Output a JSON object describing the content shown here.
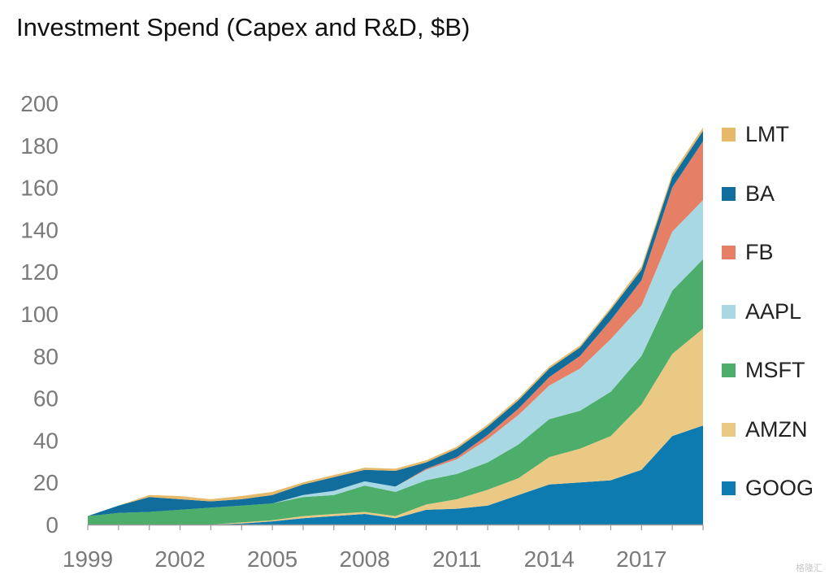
{
  "title": "Investment Spend (Capex and R&D, $B)",
  "chart_data": {
    "type": "area",
    "stacked": true,
    "title": "Investment Spend (Capex and R&D, $B)",
    "x": [
      1999,
      2000,
      2001,
      2002,
      2003,
      2004,
      2005,
      2006,
      2007,
      2008,
      2009,
      2010,
      2011,
      2012,
      2013,
      2014,
      2015,
      2016,
      2017,
      2018,
      2019
    ],
    "xticks": [
      1999,
      2002,
      2005,
      2008,
      2011,
      2014,
      2017
    ],
    "ylim": [
      0,
      200
    ],
    "yticks": [
      0,
      20,
      40,
      60,
      80,
      100,
      120,
      140,
      160,
      180,
      200
    ],
    "grid": false,
    "legend_position": "right",
    "series": [
      {
        "name": "GOOG",
        "color": "#0e7bb0",
        "values": [
          0,
          0,
          0,
          0,
          0,
          0.5,
          1.5,
          3,
          4,
          5,
          3,
          7,
          7.5,
          9,
          14,
          19,
          20,
          21,
          26,
          42,
          47
        ]
      },
      {
        "name": "AMZN",
        "color": "#eac985",
        "values": [
          0,
          0,
          0,
          0,
          0,
          0.5,
          0.5,
          1,
          1,
          1,
          1,
          2.5,
          4.5,
          7.5,
          8,
          13,
          16,
          21,
          31,
          39,
          46
        ]
      },
      {
        "name": "MSFT",
        "color": "#4cae6a",
        "values": [
          4,
          5.5,
          6,
          7,
          8,
          8,
          8,
          9,
          9,
          12.5,
          11.5,
          11.5,
          12,
          13,
          16,
          18,
          18,
          21,
          23,
          30,
          33
        ]
      },
      {
        "name": "AAPL",
        "color": "#a7d8e3",
        "values": [
          0,
          0,
          0,
          0,
          0,
          0,
          0,
          1,
          2,
          2,
          2.5,
          5,
          7,
          11,
          14,
          16,
          20,
          25,
          24,
          28,
          28
        ]
      },
      {
        "name": "FB",
        "color": "#e58066",
        "values": [
          0,
          0,
          0,
          0,
          0,
          0,
          0,
          0,
          0,
          0,
          0,
          0.5,
          1,
          2,
          3,
          4,
          6,
          9,
          12,
          21,
          28
        ]
      },
      {
        "name": "BA",
        "color": "#116d9c",
        "values": [
          0,
          3.5,
          7,
          5,
          3,
          3,
          4,
          5,
          6.5,
          5.5,
          7.5,
          3,
          4,
          4,
          4,
          4,
          4,
          5,
          5,
          5,
          5
        ]
      },
      {
        "name": "LMT",
        "color": "#e6b96a",
        "values": [
          0,
          0,
          1,
          1.5,
          1,
          1.5,
          1.5,
          1,
          1,
          1,
          1,
          1,
          1,
          1,
          1,
          1,
          1,
          1,
          1.5,
          1.5,
          1.5
        ]
      }
    ],
    "legend_order": [
      "LMT",
      "BA",
      "FB",
      "AAPL",
      "MSFT",
      "AMZN",
      "GOOG"
    ]
  },
  "watermark": "格隆汇"
}
